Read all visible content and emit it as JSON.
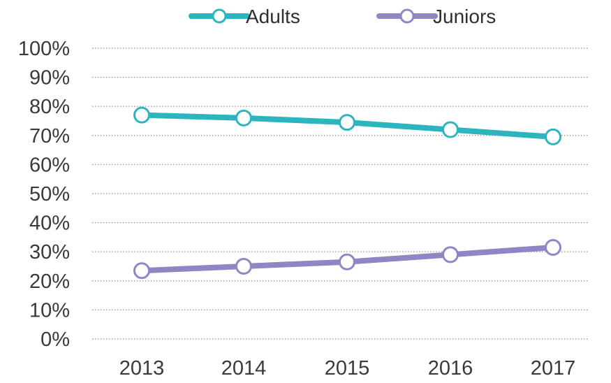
{
  "chart_data": {
    "type": "line",
    "title": "",
    "xlabel": "",
    "ylabel": "",
    "categories": [
      "2013",
      "2014",
      "2015",
      "2016",
      "2017"
    ],
    "series": [
      {
        "name": "Adults",
        "values": [
          77,
          76,
          74.5,
          72,
          69.5
        ],
        "color": "#2db5bf"
      },
      {
        "name": "Juniors",
        "values": [
          23.5,
          25,
          26.5,
          29,
          31.5
        ],
        "color": "#8f86c3"
      }
    ],
    "ylim": [
      0,
      100
    ],
    "y_ticks": [
      "0%",
      "10%",
      "20%",
      "30%",
      "40%",
      "50%",
      "60%",
      "70%",
      "80%",
      "90%",
      "100%"
    ],
    "grid": true,
    "legend_position": "top-center",
    "marker": "hollow-circle"
  }
}
